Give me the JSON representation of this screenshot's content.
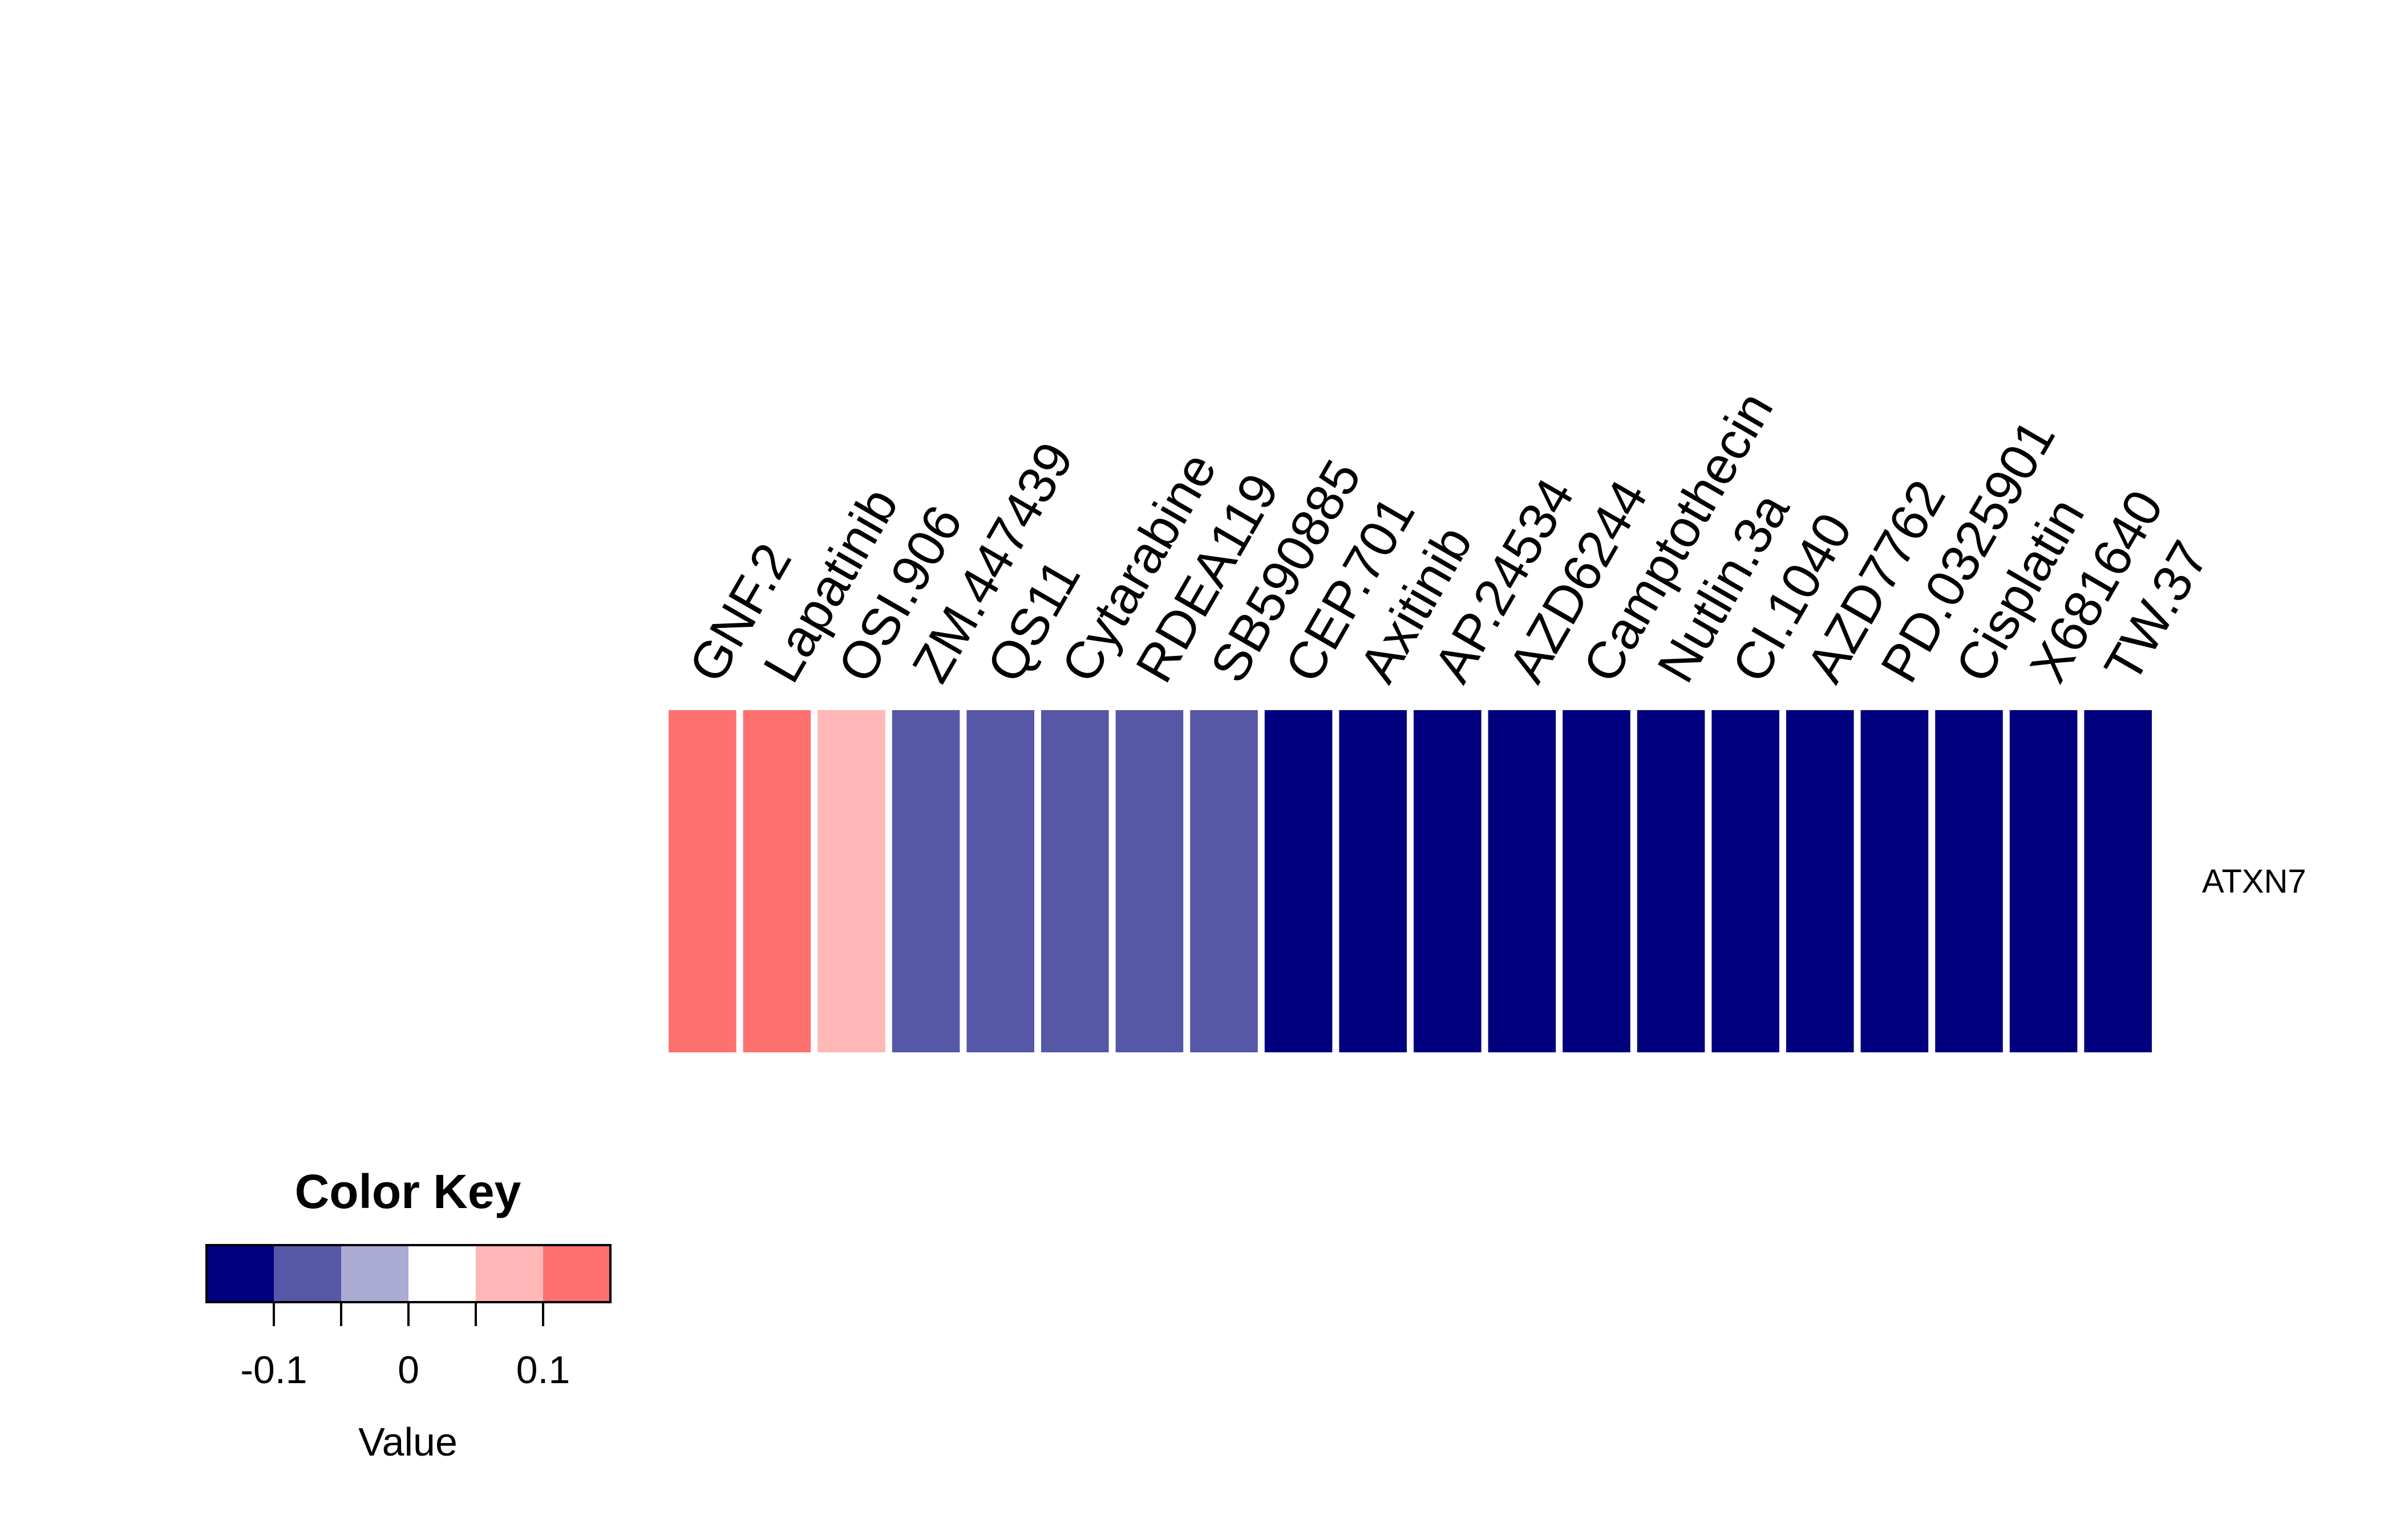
{
  "chart_data": {
    "type": "heatmap",
    "rows": [
      "ATXN7"
    ],
    "columns": [
      "GNF.2",
      "Lapatinib",
      "OSI.906",
      "ZM.447439",
      "QS11",
      "Cytarabine",
      "RDEA119",
      "SB590885",
      "CEP.701",
      "Axitinib",
      "AP.24534",
      "AZD6244",
      "Camptothecin",
      "Nutlin.3a",
      "CI.1040",
      "AZD7762",
      "PD.0325901",
      "Cisplatin",
      "X681640",
      "TW.37"
    ],
    "values": [
      [
        0.125,
        0.125,
        0.075,
        -0.075,
        -0.075,
        -0.075,
        -0.075,
        -0.075,
        -0.125,
        -0.125,
        -0.125,
        -0.125,
        -0.125,
        -0.125,
        -0.125,
        -0.125,
        -0.125,
        -0.125,
        -0.125,
        -0.125
      ]
    ],
    "color_key": {
      "title": "Color Key",
      "xlabel": "Value",
      "breaks": [
        -0.15,
        -0.1,
        -0.05,
        0,
        0.05,
        0.1,
        0.15
      ],
      "colors": [
        "#00007F",
        "#5757A8",
        "#ABABD3",
        "#FFFFFF",
        "#FFB7B7",
        "#FF7070",
        "#FF3030"
      ],
      "tick_values": [
        -0.1,
        -0.05,
        0,
        0.05,
        0.1
      ],
      "tick_labels": [
        "-0.1",
        "0",
        "0.1"
      ],
      "tick_label_values": [
        -0.1,
        0,
        0.1
      ]
    }
  }
}
